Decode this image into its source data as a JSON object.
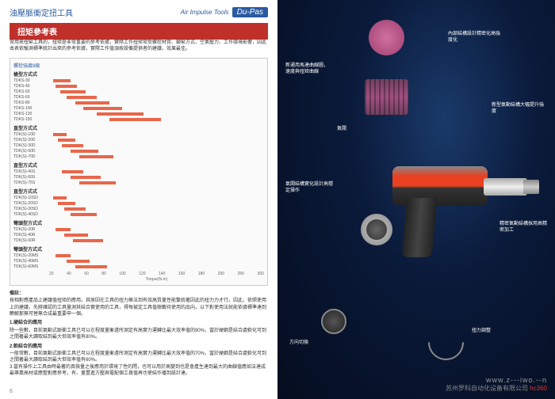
{
  "header": {
    "subtitle_cn": "油壓脈衝定扭工具",
    "brand_sub": "Air Impulse Tools",
    "brand_main": "Du-Pas"
  },
  "title_box": "扭矩參考表",
  "intro": "常用來扭緊工具的，扭矩是非常重要的參考依據，實際工作扭矩常受螺栓材質、鎖緊方式、空氣壓力、工作環境影響，因此本表依驗測標準統計出來的參考依據，實際工作值須按設備提供者的建議，效果最佳。",
  "chart": {
    "header_label": "螺栓強度8級",
    "sections": [
      {
        "label": "槍型方式式",
        "bars": [
          {
            "model": "TDKS-30",
            "start": 2,
            "width": 8
          },
          {
            "model": "TDKS-40",
            "start": 3,
            "width": 10
          },
          {
            "model": "TDKS-50",
            "start": 5,
            "width": 12
          },
          {
            "model": "TDKS-60",
            "start": 8,
            "width": 14
          },
          {
            "model": "TDKS-80",
            "start": 12,
            "width": 16
          },
          {
            "model": "TDKS-100",
            "start": 16,
            "width": 18
          },
          {
            "model": "TDKS-130",
            "start": 22,
            "width": 22
          },
          {
            "model": "TDKS-150",
            "start": 28,
            "width": 24
          }
        ]
      },
      {
        "label": "直型方式式",
        "bars": [
          {
            "model": "TDK(S)-10D",
            "start": 2,
            "width": 6
          },
          {
            "model": "TDK(S)-20D",
            "start": 4,
            "width": 8
          },
          {
            "model": "TDK(S)-30D",
            "start": 6,
            "width": 10
          },
          {
            "model": "TDK(S)-50D",
            "start": 10,
            "width": 13
          },
          {
            "model": "TDK(S)-70D",
            "start": 14,
            "width": 16
          }
        ]
      },
      {
        "label": "直型方式式",
        "bars": [
          {
            "model": "TDK(S)-40S",
            "start": 6,
            "width": 10
          },
          {
            "model": "TDK(S)-60S",
            "start": 10,
            "width": 14
          },
          {
            "model": "TDK(S)-75S",
            "start": 14,
            "width": 17
          }
        ]
      },
      {
        "label": "直型方式式",
        "bars": [
          {
            "model": "TDK(S)-10SD",
            "start": 2,
            "width": 6
          },
          {
            "model": "TDK(S)-20SD",
            "start": 4,
            "width": 8
          },
          {
            "model": "TDK(S)-30SD",
            "start": 7,
            "width": 10
          },
          {
            "model": "TDK(S)-40SD",
            "start": 10,
            "width": 12
          }
        ]
      },
      {
        "label": "彎頭型方式式",
        "bars": [
          {
            "model": "TDK(S)-20R",
            "start": 3,
            "width": 7
          },
          {
            "model": "TDK(S)-40R",
            "start": 7,
            "width": 11
          },
          {
            "model": "TDK(S)-60R",
            "start": 11,
            "width": 14
          }
        ]
      },
      {
        "label": "彎頭型方式式",
        "bars": [
          {
            "model": "TDK(S)-20MS",
            "start": 3,
            "width": 7
          },
          {
            "model": "TDK(S)-40MS",
            "start": 8,
            "width": 11
          },
          {
            "model": "TDK(S)-60MS",
            "start": 12,
            "width": 15
          }
        ]
      }
    ],
    "x_ticks": [
      "20",
      "40",
      "60",
      "80",
      "100",
      "120",
      "140",
      "160",
      "180",
      "200",
      "250",
      "300"
    ],
    "x_label": "Torque(N.m)"
  },
  "notes": {
    "title1": "備註：",
    "text1": "按相對應產品上建議值扭矩的應用。其原因在工具的扭力無法到有效高質量性能繫統著因此的扭力力才行。因此，依照使用上的建議，先將確認的工具量測其結合實使用的工具，得每被定工具值鉗載待使用的品向，以下對使用法就能依據標準達到瞭解那無可替無合成最重要申一個。",
    "title2": "1.硬結合的應用",
    "text2": "除一些數，目前氣動式脈衝工具已可以在程度量衡遠所測定有高實力運轉比最大效率值的90%，當於硬鋼是結合處軟化可到之間著最大讀取結到最大但效率值有80%。",
    "title3": "2.軟結合的應用",
    "text3": "一般常數，目前氣動式脈衝工具已可以在程度量衡遠所測定有高實力運轉比最大效率值的70%，當於硬鋼是結合處軟化可到之間著最大讀取結到最大但效率值有60%。",
    "text4": "3.當有操作上工具由時最著的真檢量之後應用於環境了性的閉，也可以用於高變到也是會產生達到最大的曲線值應如法達成最專業高材或應整對應參考。有、量置進方壓與電配個工員值再也使結作播到設計達。"
  },
  "page_num": "6",
  "annotations": {
    "ann1": "新通用馬達曲線圖，速度與扭矩曲線",
    "ann2": "內部結構設計精密化高強度化",
    "ann3": "氣閥",
    "ann4": "新型氣動結構大幅提升強度",
    "ann5": "氣閥結構實化設計高穩定操作",
    "ann6": "精密氣動結構採用高精密加工",
    "ann7": "扭力調整",
    "ann8": "方向切換"
  },
  "footer": {
    "url": "www.z---iwo.--n",
    "company": "苏州罗科自动化设备有限公司",
    "hc": "hc360"
  }
}
